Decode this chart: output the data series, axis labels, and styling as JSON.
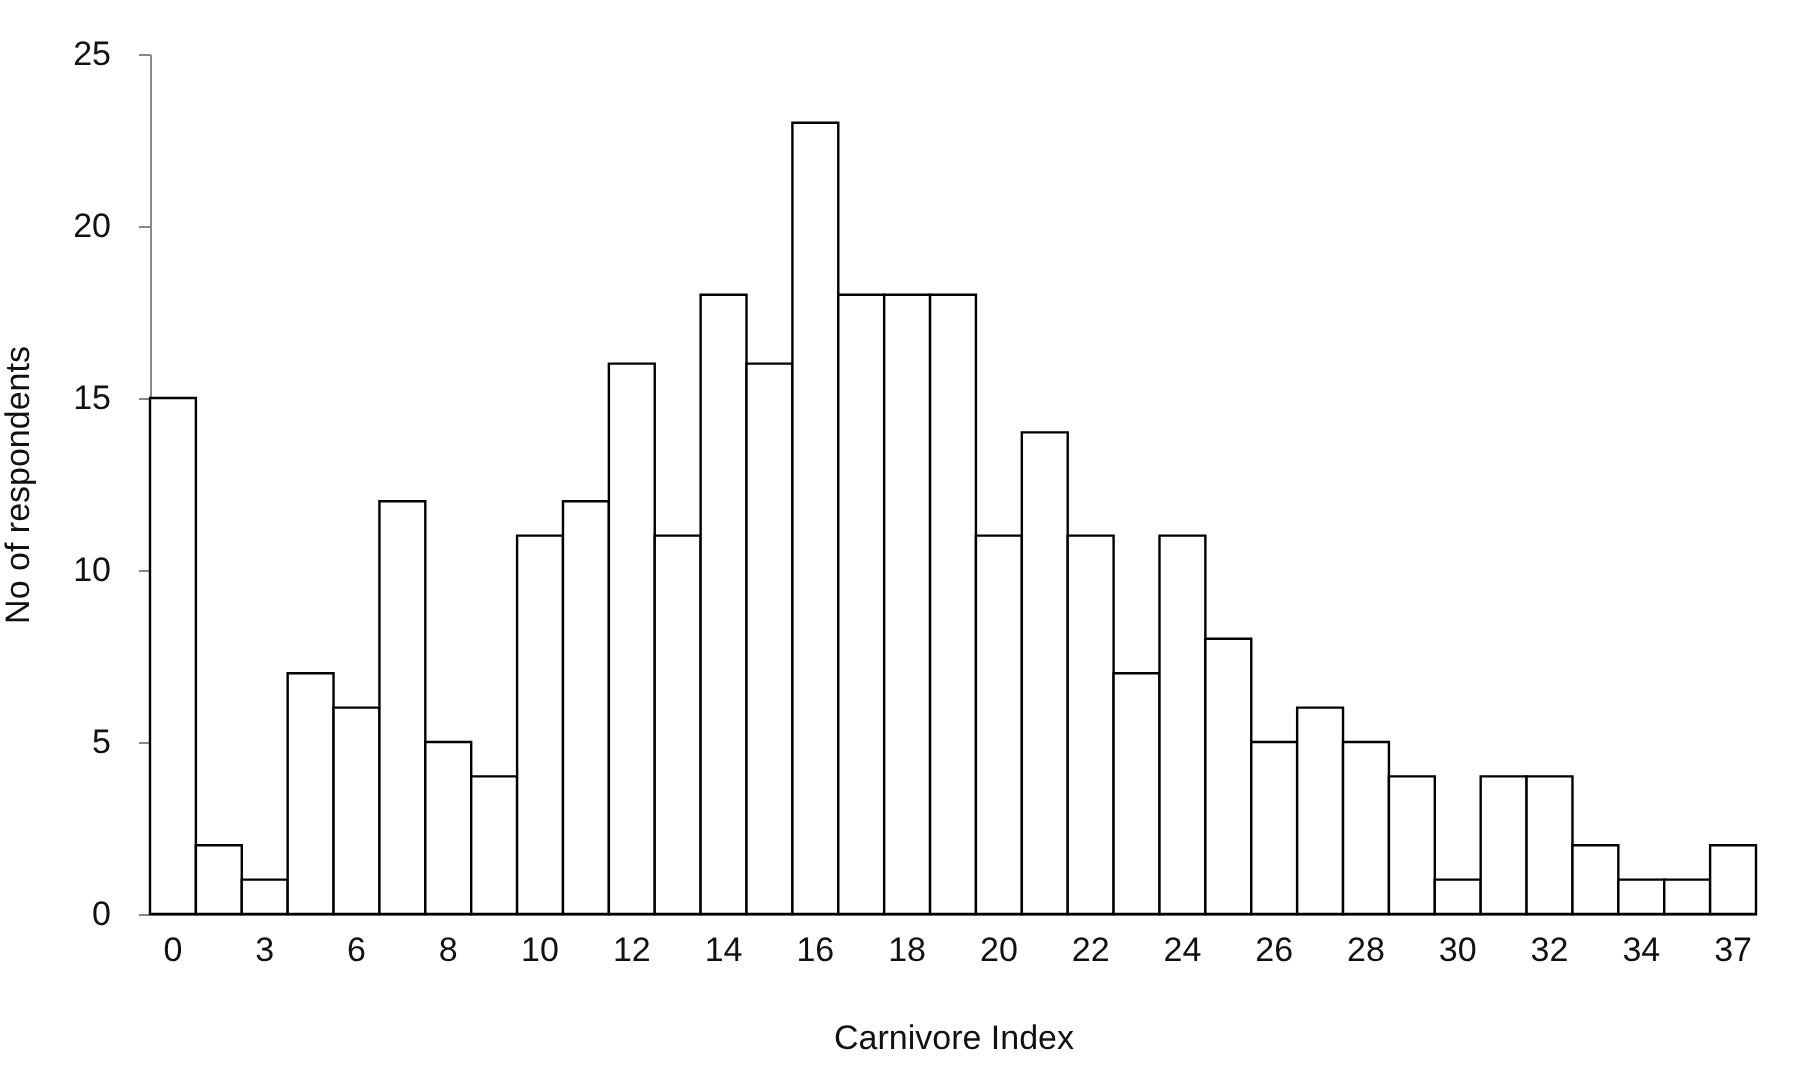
{
  "chart_data": {
    "type": "bar",
    "xlabel": "Carnivore Index",
    "ylabel": "No of respondents",
    "categories": [
      "0",
      null,
      "3",
      null,
      "6",
      null,
      "8",
      null,
      "10",
      null,
      "12",
      null,
      "14",
      null,
      "16",
      null,
      "18",
      null,
      "20",
      null,
      "22",
      null,
      "24",
      null,
      "26",
      null,
      "28",
      null,
      "30",
      null,
      "32",
      null,
      "34",
      null,
      "37"
    ],
    "values": [
      15,
      2,
      1,
      7,
      6,
      12,
      5,
      4,
      11,
      12,
      16,
      11,
      18,
      16,
      23,
      18,
      18,
      18,
      11,
      14,
      11,
      7,
      11,
      8,
      5,
      6,
      5,
      4,
      1,
      4,
      4,
      2,
      1,
      1,
      2
    ],
    "color": "#ffffff",
    "ylim": [
      0,
      25
    ],
    "yticks": [
      0,
      5,
      10,
      15,
      20,
      25
    ],
    "grid": false
  }
}
